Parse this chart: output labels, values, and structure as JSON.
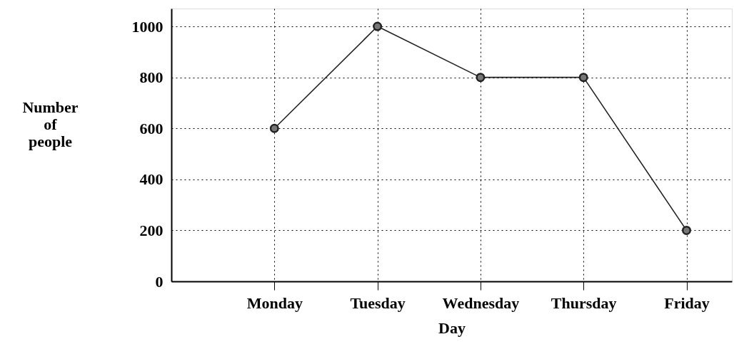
{
  "chart_data": {
    "type": "line",
    "xlabel": "Day",
    "ylabel": "Number of people",
    "categories": [
      "Monday",
      "Tuesday",
      "Wednesday",
      "Thursday",
      "Friday"
    ],
    "series": [
      {
        "color": "#222222",
        "values": [
          600,
          1000,
          800,
          800,
          200
        ]
      }
    ],
    "ylim": [
      0,
      1070
    ],
    "yticks": [
      0,
      200,
      400,
      600,
      800,
      1000
    ],
    "grid": true,
    "marker": "circle",
    "line_style": "solid"
  }
}
